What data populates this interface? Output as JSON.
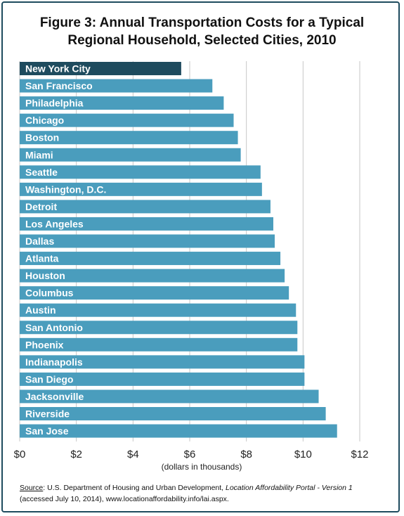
{
  "title_line1": "Figure 3: Annual Transportation Costs for a Typical",
  "title_line2": "Regional Household, Selected Cities, 2010",
  "chart_data": {
    "type": "bar",
    "orientation": "horizontal",
    "categories": [
      "New York City",
      "San Francisco",
      "Philadelphia",
      "Chicago",
      "Boston",
      "Miami",
      "Seattle",
      "Washington, D.C.",
      "Detroit",
      "Los Angeles",
      "Dallas",
      "Atlanta",
      "Houston",
      "Columbus",
      "Austin",
      "San Antonio",
      "Phoenix",
      "Indianapolis",
      "San Diego",
      "Jacksonville",
      "Riverside",
      "San Jose"
    ],
    "values": [
      5.7,
      6.8,
      7.2,
      7.55,
      7.7,
      7.8,
      8.5,
      8.55,
      8.85,
      8.95,
      9.0,
      9.2,
      9.35,
      9.5,
      9.75,
      9.8,
      9.8,
      10.05,
      10.05,
      10.55,
      10.8,
      11.2
    ],
    "highlight_color": "#1e4b5e",
    "bar_color": "#4a9dbd",
    "xlim": [
      0,
      12
    ],
    "x_ticks": [
      0,
      2,
      4,
      6,
      8,
      10,
      12
    ],
    "x_tick_labels": [
      "$0",
      "$2",
      "$4",
      "$6",
      "$8",
      "$10",
      "$12"
    ],
    "xlabel": "(dollars in thousands)",
    "grid": true
  },
  "source": {
    "label": "Source",
    "text1": ": U.S. Department of Housing and Urban Development, ",
    "italic": "Location Affordability Portal - Version 1",
    "text2": "(accessed July 10, 2014),  www.locationaffordability.info/lai.aspx."
  }
}
